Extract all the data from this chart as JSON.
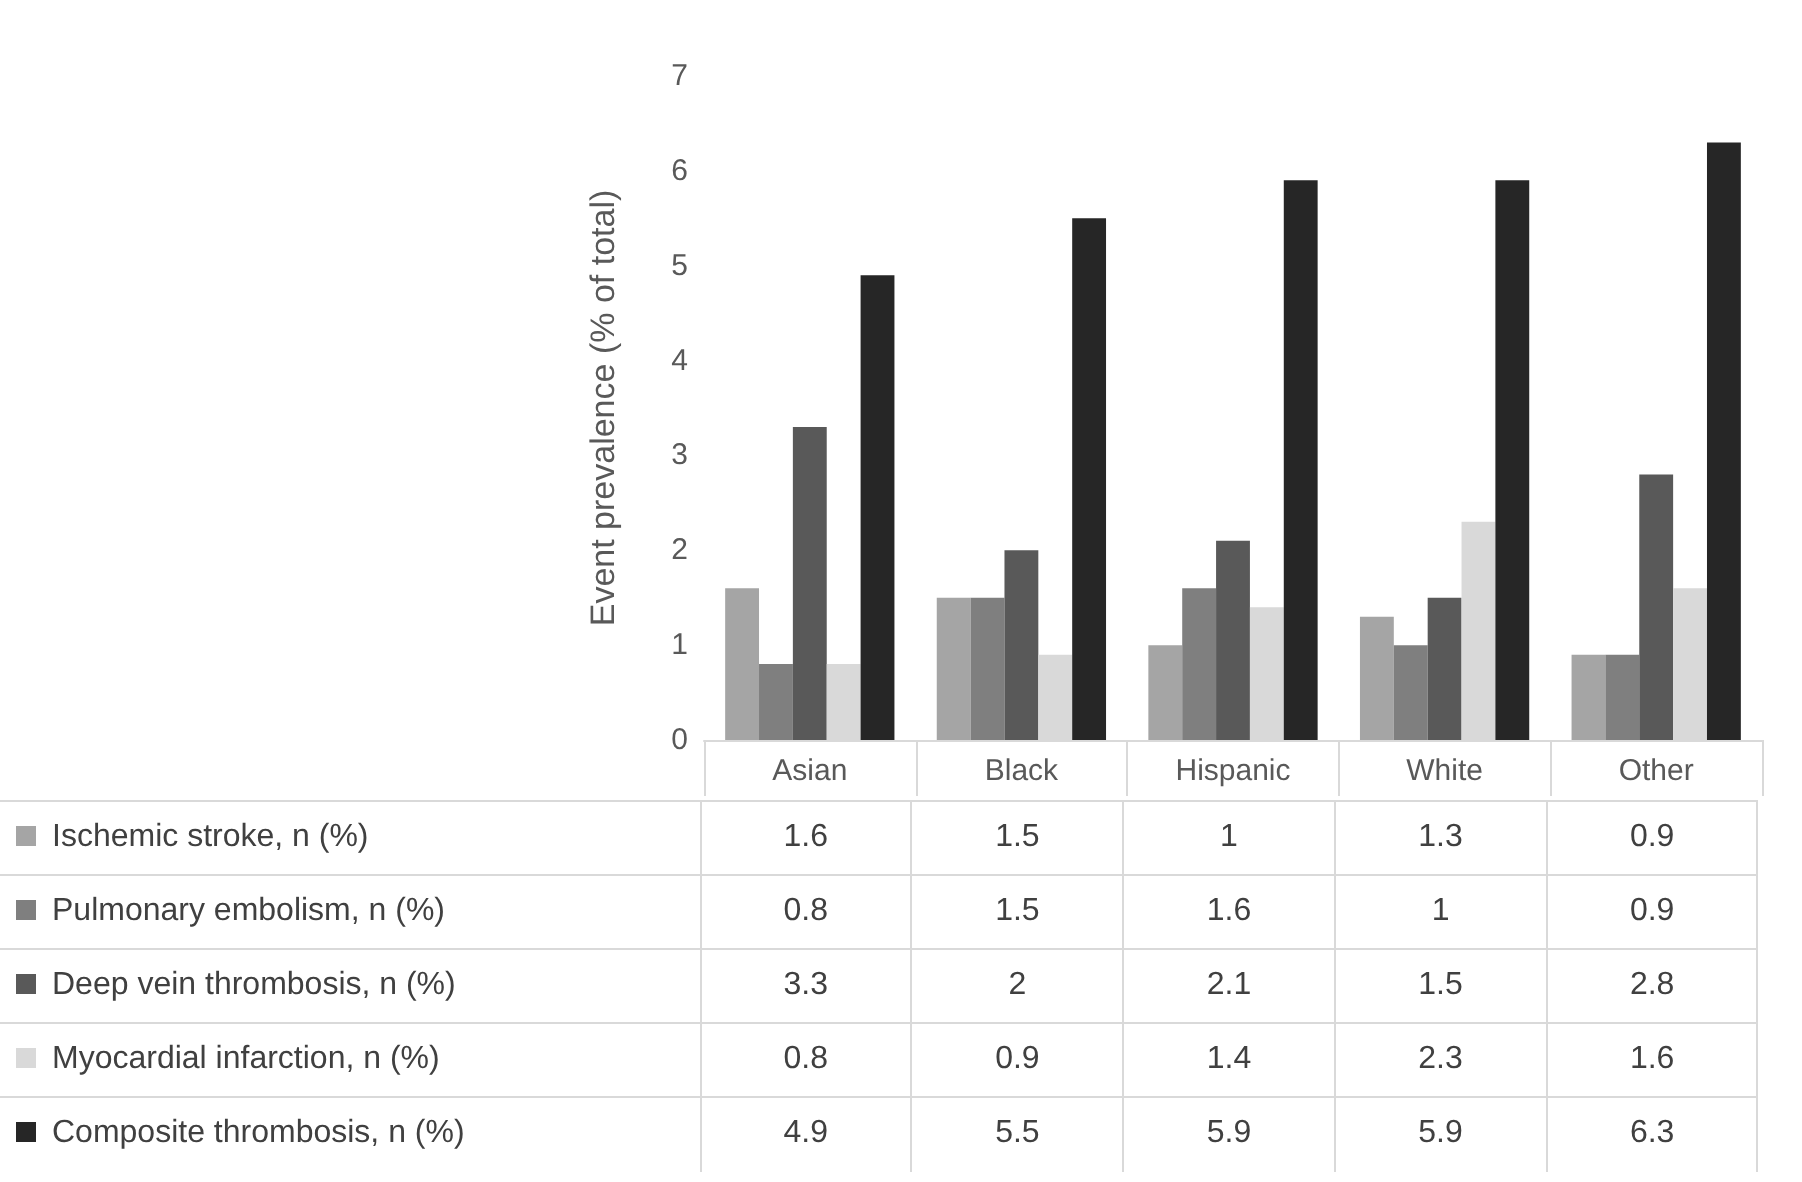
{
  "chart_data": {
    "type": "bar",
    "ylabel": "Event prevalence (% of total)",
    "categories": [
      "Asian",
      "Black",
      "Hispanic",
      "White",
      "Other"
    ],
    "series": [
      {
        "name": "Ischemic stroke, n (%)",
        "color": "#a5a5a5",
        "values": [
          1.6,
          1.5,
          1,
          1.3,
          0.9
        ]
      },
      {
        "name": "Pulmonary embolism, n (%)",
        "color": "#7f7f7f",
        "values": [
          0.8,
          1.5,
          1.6,
          1,
          0.9
        ]
      },
      {
        "name": "Deep vein thrombosis, n (%)",
        "color": "#595959",
        "values": [
          3.3,
          2,
          2.1,
          1.5,
          2.8
        ]
      },
      {
        "name": "Myocardial infarction, n (%)",
        "color": "#d9d9d9",
        "values": [
          0.8,
          0.9,
          1.4,
          2.3,
          1.6
        ]
      },
      {
        "name": "Composite thrombosis, n (%)",
        "color": "#262626",
        "values": [
          4.9,
          5.5,
          5.9,
          5.9,
          6.3
        ]
      }
    ],
    "ylim": [
      0,
      7
    ],
    "yticks": [
      0,
      1,
      2,
      3,
      4,
      5,
      6,
      7
    ],
    "grid": false,
    "legend": "bottom",
    "data_labels": true
  }
}
